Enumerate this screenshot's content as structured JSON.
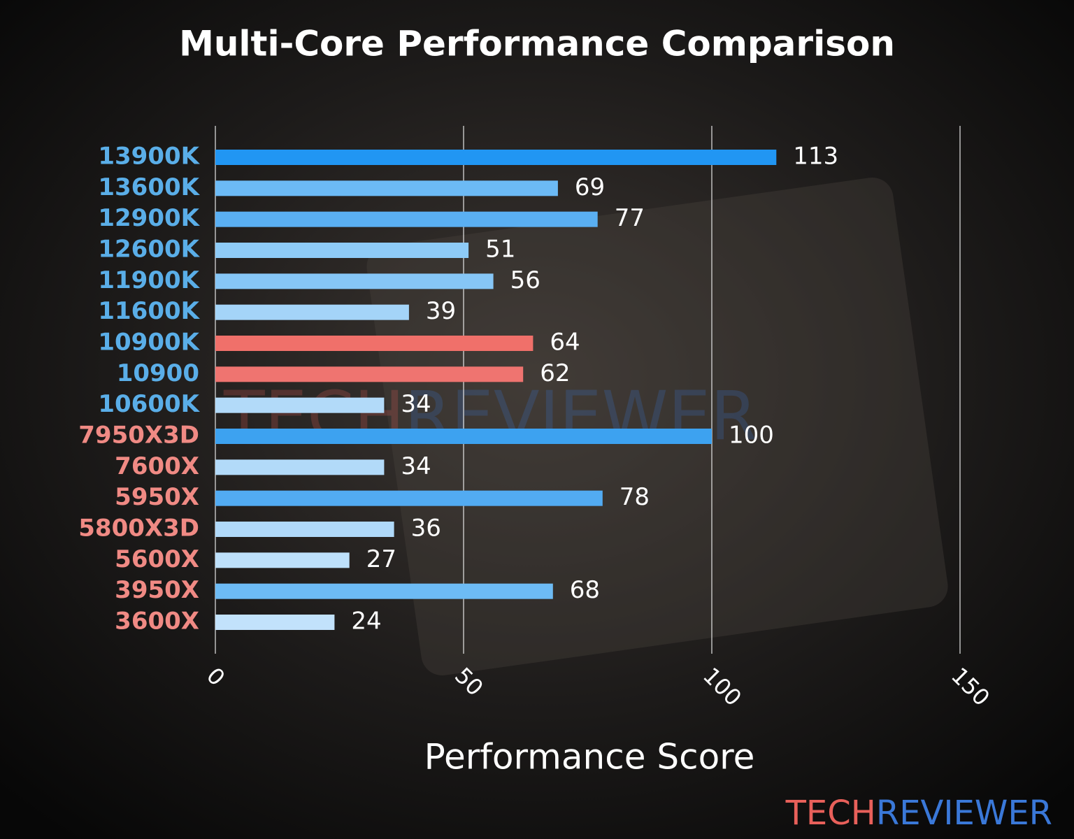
{
  "chart_data": {
    "type": "barh",
    "title": "Multi-Core Performance Comparison",
    "xlabel": "Performance Score",
    "categories": [
      "13900K",
      "13600K",
      "12900K",
      "12600K",
      "11900K",
      "11600K",
      "10900K",
      "10900",
      "10600K",
      "7950X3D",
      "7600X",
      "5950X",
      "5800X3D",
      "5600X",
      "3950X",
      "3600X"
    ],
    "values": [
      113,
      69,
      77,
      51,
      56,
      39,
      64,
      62,
      34,
      100,
      34,
      78,
      36,
      27,
      68,
      24
    ],
    "colors": [
      "#2196f3",
      "#6cbaf5",
      "#5aaff2",
      "#8ecbf7",
      "#86c6f6",
      "#a4d4f8",
      "#f0706a",
      "#ef7470",
      "#b2daf9",
      "#3da2f0",
      "#b2daf9",
      "#52abf2",
      "#b0d9f9",
      "#bde0fa",
      "#6dbbf5",
      "#c2e2fb"
    ],
    "label_colors": [
      "#5aaee8",
      "#5aaee8",
      "#5aaee8",
      "#5aaee8",
      "#5aaee8",
      "#5aaee8",
      "#5aaee8",
      "#5aaee8",
      "#5aaee8",
      "#f08a84",
      "#f08a84",
      "#f08a84",
      "#f08a84",
      "#f08a84",
      "#f08a84",
      "#f08a84"
    ],
    "xlim": [
      0,
      150
    ],
    "xticks": [
      0,
      50,
      100,
      150
    ],
    "grid": true
  },
  "watermark": {
    "first": "TECH",
    "second": "REVIEWER",
    "first_color": "#e8605a",
    "second_color": "#3a78d8"
  }
}
